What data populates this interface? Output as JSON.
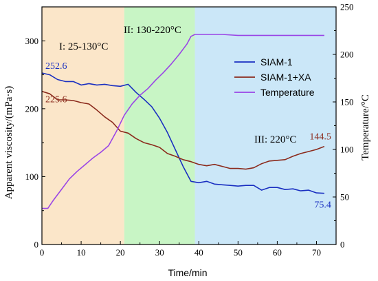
{
  "chart_data": {
    "type": "line",
    "xlabel": "Time/min",
    "ylabel": "Apparent viscosity/(mPa·s)",
    "ylabel2": "Temperature/°C",
    "xlim": [
      0,
      75
    ],
    "ylim": [
      0,
      350
    ],
    "ylim2": [
      0,
      250
    ],
    "xticks": [
      0,
      10,
      20,
      30,
      40,
      50,
      60,
      70
    ],
    "yticks": [
      0,
      100,
      200,
      300
    ],
    "yticks2": [
      0,
      50,
      100,
      150,
      200,
      250
    ],
    "grid": false,
    "legend_position": "right",
    "regions": [
      {
        "label": "I: 25-130°C",
        "x_start": 0,
        "x_end": 21,
        "color": "#fbe6c9"
      },
      {
        "label": "II: 130-220°C",
        "x_start": 21,
        "x_end": 39,
        "color": "#c8f5c5"
      },
      {
        "label": "III: 220°C",
        "x_start": 39,
        "x_end": 75,
        "color": "#cbe7f8"
      }
    ],
    "series": [
      {
        "name": "SIAM-1",
        "axis": "left",
        "color": "#1a2fc1",
        "x": [
          0,
          2,
          4,
          6,
          8,
          10,
          12,
          14,
          16,
          18,
          20,
          22,
          24,
          26,
          28,
          30,
          32,
          34,
          36,
          38,
          40,
          42,
          44,
          46,
          48,
          50,
          52,
          54,
          56,
          58,
          60,
          62,
          64,
          66,
          68,
          70,
          72
        ],
        "values": [
          252.6,
          250,
          243,
          240,
          240,
          235,
          237,
          235,
          236,
          234,
          233,
          236,
          224,
          214,
          203,
          186,
          165,
          140,
          115,
          93,
          91,
          93,
          89,
          88,
          87,
          86,
          87,
          87,
          80,
          84,
          84,
          81,
          82,
          79,
          80,
          76,
          75.4
        ]
      },
      {
        "name": "SIAM-1+XA",
        "axis": "left",
        "color": "#8b2a1c",
        "x": [
          0,
          2,
          4,
          6,
          8,
          10,
          12,
          14,
          16,
          18,
          20,
          22,
          24,
          26,
          28,
          30,
          32,
          34,
          36,
          38,
          40,
          42,
          44,
          46,
          48,
          50,
          52,
          54,
          56,
          58,
          60,
          62,
          64,
          66,
          68,
          70,
          72
        ],
        "values": [
          225.6,
          222,
          213,
          213,
          212,
          209,
          207,
          198,
          188,
          180,
          167,
          164,
          156,
          150,
          147,
          143,
          134,
          130,
          125,
          122,
          118,
          116,
          118,
          115,
          112,
          112,
          111,
          113,
          119,
          123,
          124,
          125,
          130,
          134,
          137,
          140,
          144.5
        ]
      },
      {
        "name": "Temperature",
        "axis": "right",
        "color": "#9a45e6",
        "x": [
          0,
          1.5,
          3,
          5,
          7,
          9,
          11,
          13,
          15,
          17,
          19,
          21,
          23,
          25,
          27,
          29,
          31,
          33,
          35,
          37,
          38,
          39,
          42,
          46,
          50,
          55,
          60,
          65,
          70,
          72
        ],
        "values": [
          38,
          38,
          47,
          58,
          69,
          77,
          84,
          91,
          97,
          104,
          119,
          136,
          148,
          157,
          164,
          173,
          181,
          190,
          200,
          211,
          219,
          221,
          221,
          221,
          220,
          220,
          220,
          220,
          220,
          220
        ]
      }
    ],
    "annotations": [
      {
        "text": "252.6",
        "series": "SIAM-1",
        "x": 0,
        "y": 252.6,
        "axis": "left",
        "color": "#1a2fc1"
      },
      {
        "text": "225.6",
        "series": "SIAM-1+XA",
        "x": 0,
        "y": 225.6,
        "axis": "left",
        "color": "#8b2a1c"
      },
      {
        "text": "75.4",
        "series": "SIAM-1",
        "x": 72,
        "y": 75.4,
        "axis": "left",
        "color": "#1a2fc1"
      },
      {
        "text": "144.5",
        "series": "SIAM-1+XA",
        "x": 72,
        "y": 144.5,
        "axis": "left",
        "color": "#8b2a1c"
      }
    ]
  }
}
